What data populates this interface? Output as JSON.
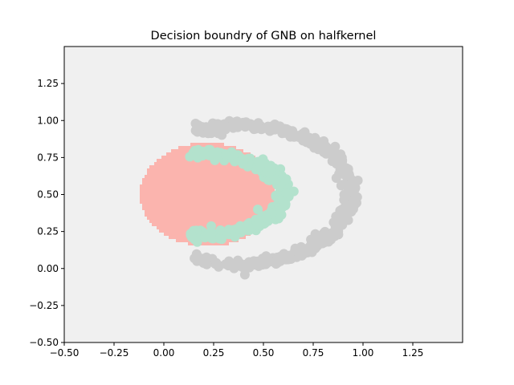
{
  "chart_data": {
    "type": "scatter",
    "title": "Decision boundry of GNB on halfkernel",
    "xlabel": "",
    "ylabel": "",
    "xlim": [
      -0.5,
      1.5
    ],
    "ylim": [
      -0.5,
      1.5
    ],
    "x_ticks": [
      -0.5,
      -0.25,
      0.0,
      0.25,
      0.5,
      0.75,
      1.0,
      1.25
    ],
    "y_ticks": [
      -0.5,
      -0.25,
      0.0,
      0.25,
      0.5,
      0.75,
      1.0,
      1.25
    ],
    "x_tick_labels": [
      "−0.50",
      "−0.25",
      "0.00",
      "0.25",
      "0.50",
      "0.75",
      "1.00",
      "1.25"
    ],
    "y_tick_labels": [
      "−0.50",
      "−0.25",
      "0.00",
      "0.25",
      "0.50",
      "0.75",
      "1.00",
      "1.25"
    ],
    "grid": false,
    "legend": "none",
    "colors": {
      "background_region": "#f0f0f0",
      "decision_region": "#fbb4ae",
      "outer_class_points": "#cccccc",
      "inner_class_points": "#b3e2cd"
    },
    "decision_region": {
      "shape": "ellipse",
      "center": [
        0.22,
        0.5
      ],
      "radius_x": 0.34,
      "radius_y": 0.35
    },
    "series": [
      {
        "class": "outer half-ring",
        "color": "#cccccc",
        "shape": "half-annulus",
        "center": [
          0.38,
          0.5
        ],
        "radius_x": 0.56,
        "radius_y": 0.47,
        "angle_range_deg": [
          -113,
          113
        ],
        "points": 400
      },
      {
        "class": "inner half-ring",
        "color": "#b3e2cd",
        "shape": "half-annulus",
        "center": [
          0.2,
          0.5
        ],
        "radius_x": 0.4,
        "radius_y": 0.27,
        "angle_range_deg": [
          -100,
          100
        ],
        "points": 280
      }
    ]
  }
}
